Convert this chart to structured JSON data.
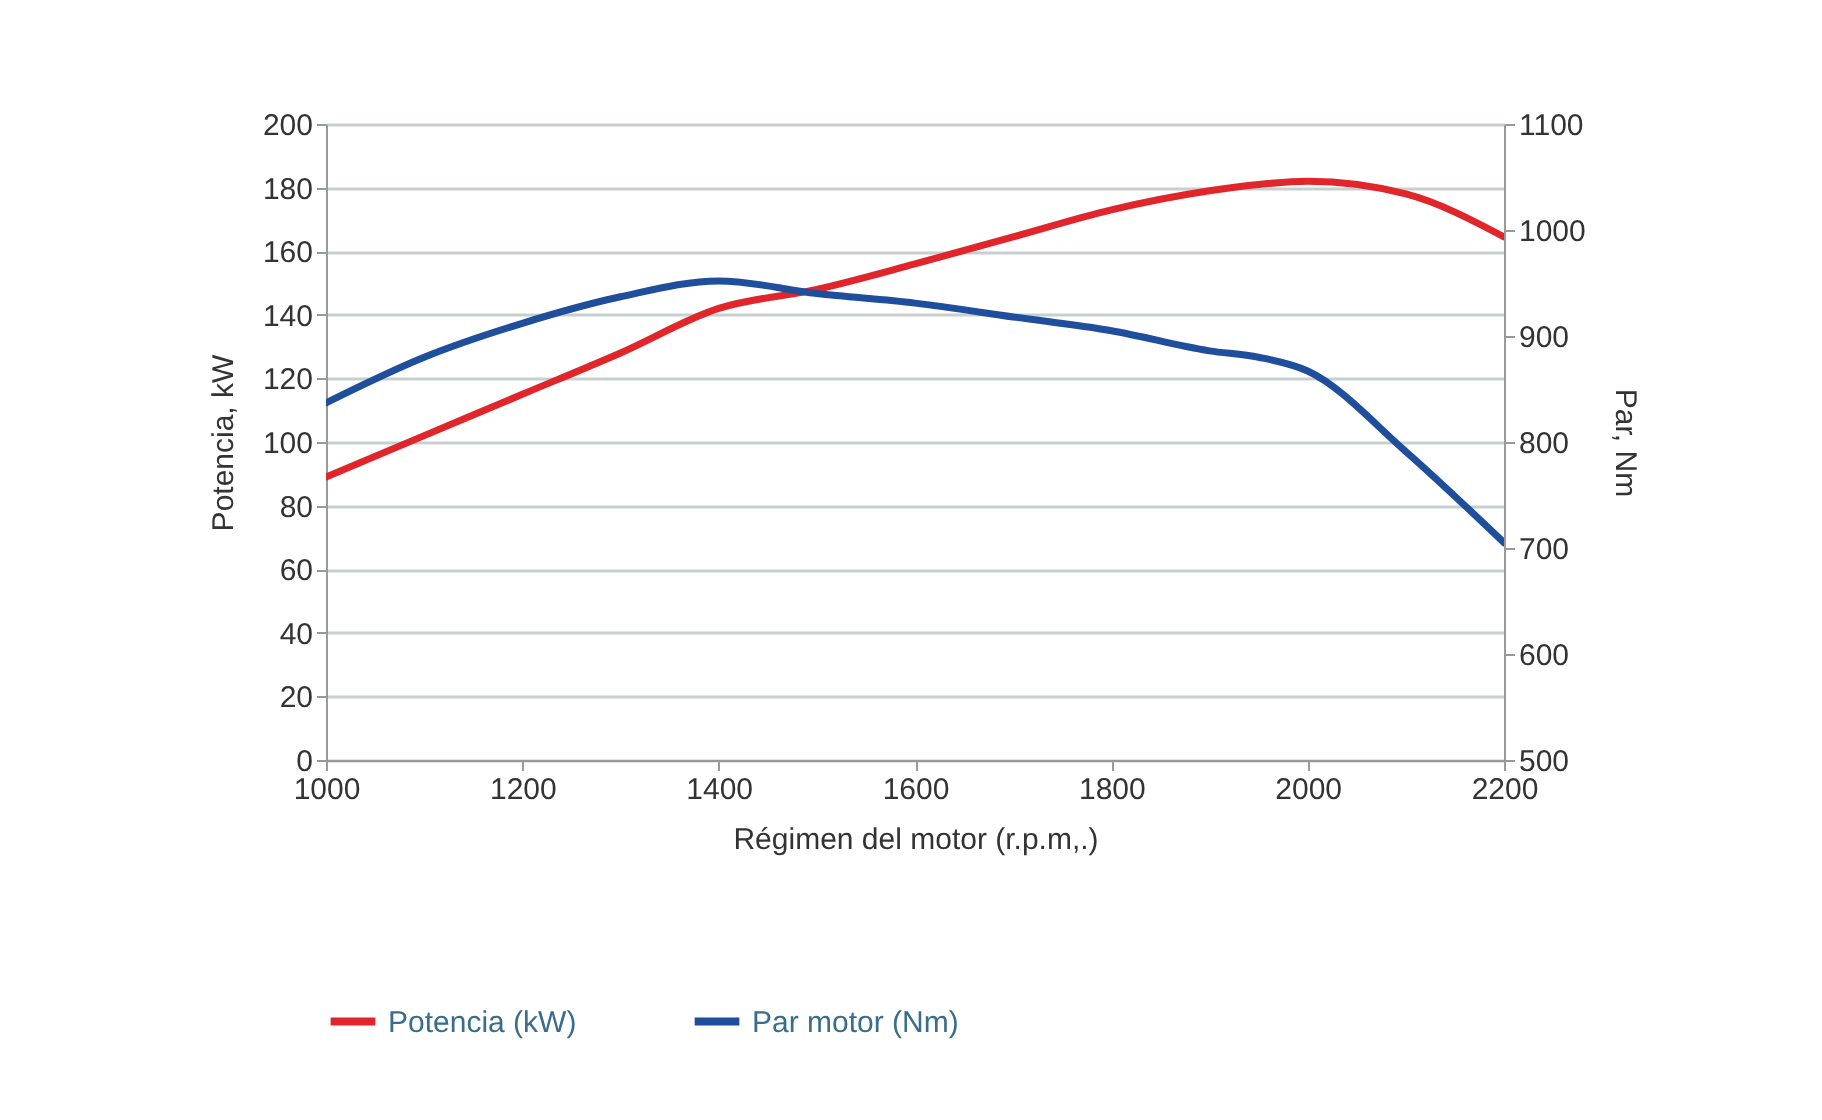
{
  "chart_data": {
    "type": "line",
    "xlabel": "Régimen del motor (r.p.m,.)",
    "ylabel": "Potencia, kW",
    "y2label": "Par, Nm",
    "x": [
      1000,
      1100,
      1200,
      1300,
      1400,
      1500,
      1600,
      1700,
      1800,
      1900,
      1950,
      2000,
      2100,
      2200
    ],
    "series": [
      {
        "name": "Potencia (kW)",
        "color": "#e0262b",
        "values": [
          89,
          102,
          115,
          128,
          142,
          148,
          156,
          164.5,
          173,
          179,
          181,
          182,
          178,
          164.5
        ]
      },
      {
        "name": "Par motor (Nm)",
        "color": "#1f4e9c",
        "axis": "y2",
        "values": [
          837,
          880,
          912,
          937,
          952,
          940,
          931,
          918,
          905,
          886,
          880,
          867,
          791,
          705
        ]
      }
    ],
    "xlim": [
      1000,
      2200
    ],
    "xticks": [
      1000,
      1200,
      1400,
      1600,
      1800,
      2000,
      2200
    ],
    "ylim": [
      0,
      200
    ],
    "yticks": [
      0,
      20,
      40,
      60,
      80,
      100,
      120,
      140,
      160,
      180,
      200
    ],
    "y2lim": [
      500,
      1100
    ],
    "y2ticks": [
      500,
      600,
      700,
      800,
      900,
      1000,
      1100
    ],
    "grid": "y",
    "legend": "bottom",
    "marker": "none",
    "line_style": "solid"
  }
}
